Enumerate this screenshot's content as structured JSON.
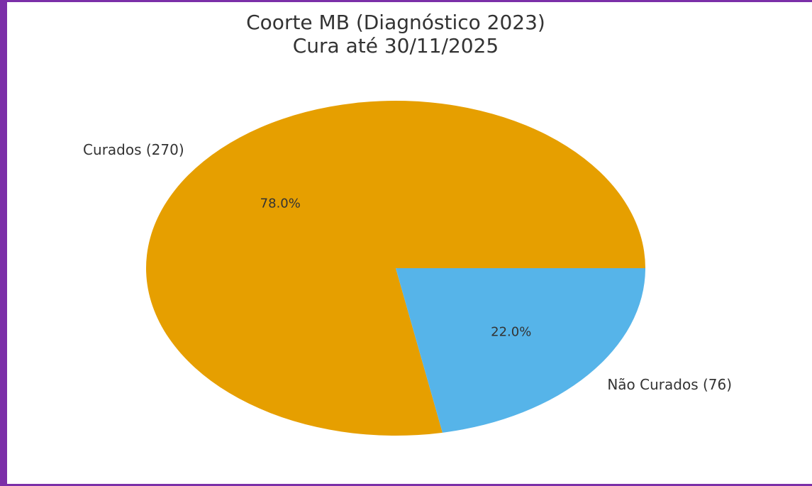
{
  "chart_data": {
    "type": "pie",
    "title": "Coorte MB (Diagnóstico 2023)",
    "subtitle": "Cura até 30/11/2025",
    "categories": [
      "Curados (270)",
      "Não Curados (76)"
    ],
    "values": [
      78,
      22
    ],
    "value_labels": [
      "78.0%",
      "22.0%"
    ],
    "colors": [
      "#E69F00",
      "#56B4E9"
    ]
  }
}
